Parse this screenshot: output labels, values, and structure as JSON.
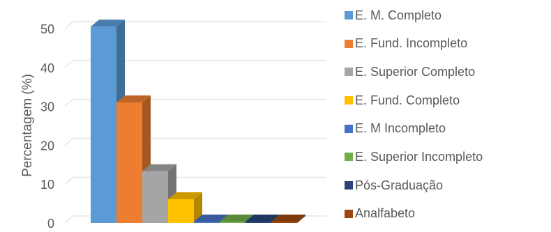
{
  "chart_data": {
    "type": "bar",
    "title": "",
    "xlabel": "",
    "ylabel": "Percentagem (%)",
    "ylim": [
      0,
      50
    ],
    "yticks": [
      0,
      10,
      20,
      30,
      40,
      50
    ],
    "grid": true,
    "three_d": true,
    "legend_position": "right",
    "series": [
      {
        "name": "E. M. Completo",
        "value": 50.5,
        "color": "#5b9bd5"
      },
      {
        "name": "E. Fund. Incompleto",
        "value": 31.0,
        "color": "#ed7d31"
      },
      {
        "name": "E. Superior  Completo",
        "value": 13.3,
        "color": "#a5a5a5"
      },
      {
        "name": "E. Fund. Completo",
        "value": 6.1,
        "color": "#ffc000"
      },
      {
        "name": "E. M Incompleto",
        "value": 0,
        "color": "#4472c4"
      },
      {
        "name": "E. Superior  Incompleto",
        "value": 0,
        "color": "#70ad47"
      },
      {
        "name": "Pós-Graduação",
        "value": 0,
        "color": "#264478"
      },
      {
        "name": "Analfabeto",
        "value": 0,
        "color": "#9e480e"
      }
    ]
  }
}
